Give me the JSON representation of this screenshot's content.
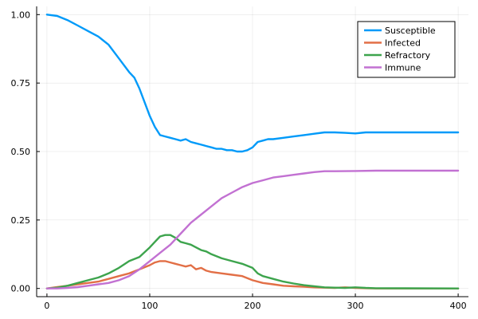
{
  "chart_data": {
    "type": "line",
    "title": "",
    "xlabel": "",
    "ylabel": "",
    "xlim": [
      -10,
      410
    ],
    "ylim": [
      -0.03,
      1.03
    ],
    "xticks": [
      0,
      100,
      200,
      300,
      400
    ],
    "yticks": [
      0.0,
      0.25,
      0.5,
      0.75,
      1.0
    ],
    "xtick_labels": [
      "0",
      "100",
      "200",
      "300",
      "400"
    ],
    "ytick_labels": [
      "0.00",
      "0.25",
      "0.50",
      "0.75",
      "1.00"
    ],
    "grid": true,
    "legend_position": "top-right",
    "series": [
      {
        "name": "Susceptible",
        "color": "#009af9",
        "x": [
          0,
          10,
          20,
          30,
          40,
          50,
          60,
          70,
          80,
          85,
          90,
          95,
          100,
          105,
          110,
          115,
          120,
          125,
          130,
          135,
          140,
          145,
          150,
          155,
          160,
          165,
          170,
          175,
          180,
          185,
          190,
          195,
          200,
          205,
          210,
          215,
          220,
          230,
          240,
          250,
          260,
          270,
          280,
          290,
          300,
          310,
          320,
          350,
          400
        ],
        "y": [
          1.0,
          0.995,
          0.98,
          0.96,
          0.94,
          0.92,
          0.89,
          0.84,
          0.79,
          0.77,
          0.73,
          0.68,
          0.63,
          0.59,
          0.56,
          0.555,
          0.55,
          0.545,
          0.54,
          0.545,
          0.535,
          0.53,
          0.525,
          0.52,
          0.515,
          0.51,
          0.51,
          0.505,
          0.505,
          0.5,
          0.5,
          0.505,
          0.515,
          0.535,
          0.54,
          0.545,
          0.545,
          0.55,
          0.555,
          0.56,
          0.565,
          0.57,
          0.57,
          0.568,
          0.566,
          0.57,
          0.57,
          0.57,
          0.57
        ]
      },
      {
        "name": "Infected",
        "color": "#e26f46",
        "x": [
          0,
          10,
          20,
          30,
          40,
          50,
          60,
          70,
          80,
          90,
          100,
          105,
          110,
          115,
          120,
          125,
          130,
          135,
          140,
          145,
          150,
          155,
          160,
          170,
          180,
          190,
          200,
          210,
          220,
          230,
          240,
          250,
          260,
          270,
          280,
          290,
          300,
          310,
          320,
          400
        ],
        "y": [
          0.0,
          0.005,
          0.01,
          0.015,
          0.02,
          0.025,
          0.035,
          0.045,
          0.055,
          0.07,
          0.085,
          0.095,
          0.1,
          0.1,
          0.095,
          0.09,
          0.085,
          0.08,
          0.085,
          0.07,
          0.075,
          0.065,
          0.06,
          0.055,
          0.05,
          0.045,
          0.03,
          0.02,
          0.015,
          0.01,
          0.008,
          0.006,
          0.004,
          0.003,
          0.002,
          0.004,
          0.002,
          0.001,
          0.0,
          0.0
        ]
      },
      {
        "name": "Refractory",
        "color": "#3da44d",
        "x": [
          0,
          10,
          20,
          30,
          40,
          50,
          60,
          70,
          80,
          90,
          100,
          105,
          110,
          115,
          120,
          125,
          130,
          135,
          140,
          145,
          150,
          155,
          160,
          170,
          180,
          190,
          200,
          205,
          210,
          220,
          230,
          240,
          250,
          260,
          270,
          280,
          290,
          300,
          310,
          320,
          400
        ],
        "y": [
          0.0,
          0.003,
          0.01,
          0.02,
          0.03,
          0.04,
          0.055,
          0.075,
          0.1,
          0.115,
          0.15,
          0.17,
          0.19,
          0.195,
          0.195,
          0.185,
          0.17,
          0.165,
          0.16,
          0.15,
          0.14,
          0.135,
          0.125,
          0.11,
          0.1,
          0.09,
          0.075,
          0.055,
          0.045,
          0.035,
          0.025,
          0.018,
          0.012,
          0.008,
          0.004,
          0.003,
          0.002,
          0.004,
          0.002,
          0.001,
          0.0
        ]
      },
      {
        "name": "Immune",
        "color": "#c271d2",
        "x": [
          0,
          10,
          20,
          30,
          40,
          50,
          60,
          70,
          80,
          90,
          100,
          110,
          120,
          130,
          140,
          150,
          160,
          170,
          180,
          190,
          200,
          210,
          220,
          230,
          240,
          250,
          260,
          270,
          280,
          300,
          320,
          350,
          400
        ],
        "y": [
          0.0,
          0.0,
          0.002,
          0.005,
          0.01,
          0.015,
          0.02,
          0.03,
          0.045,
          0.07,
          0.1,
          0.13,
          0.16,
          0.2,
          0.24,
          0.27,
          0.3,
          0.33,
          0.35,
          0.37,
          0.385,
          0.395,
          0.405,
          0.41,
          0.415,
          0.42,
          0.425,
          0.428,
          0.428,
          0.429,
          0.43,
          0.43,
          0.43
        ]
      }
    ]
  }
}
